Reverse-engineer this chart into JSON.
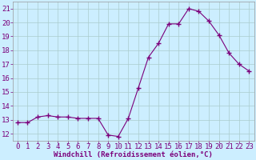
{
  "x": [
    0,
    1,
    2,
    3,
    4,
    5,
    6,
    7,
    8,
    9,
    10,
    11,
    12,
    13,
    14,
    15,
    16,
    17,
    18,
    19,
    20,
    21,
    22,
    23
  ],
  "y": [
    12.8,
    12.8,
    13.2,
    13.3,
    13.2,
    13.2,
    13.1,
    13.1,
    13.1,
    11.9,
    11.8,
    13.1,
    15.3,
    17.5,
    18.5,
    19.9,
    19.9,
    21.0,
    20.8,
    20.1,
    19.1,
    17.8,
    17.0,
    16.5
  ],
  "line_color": "#7b007b",
  "marker": "+",
  "marker_size": 4,
  "bg_color": "#cceeff",
  "grid_color": "#aacccc",
  "xlabel": "Windchill (Refroidissement éolien,°C)",
  "ylabel_ticks": [
    12,
    13,
    14,
    15,
    16,
    17,
    18,
    19,
    20,
    21
  ],
  "xlim": [
    -0.5,
    23.5
  ],
  "ylim": [
    11.5,
    21.5
  ],
  "xtick_labels": [
    "0",
    "1",
    "2",
    "3",
    "4",
    "5",
    "6",
    "7",
    "8",
    "9",
    "10",
    "11",
    "12",
    "13",
    "14",
    "15",
    "16",
    "17",
    "18",
    "19",
    "20",
    "21",
    "22",
    "23"
  ],
  "label_color": "#7b007b",
  "axis_label_fontsize": 6.5,
  "tick_fontsize": 6.5
}
